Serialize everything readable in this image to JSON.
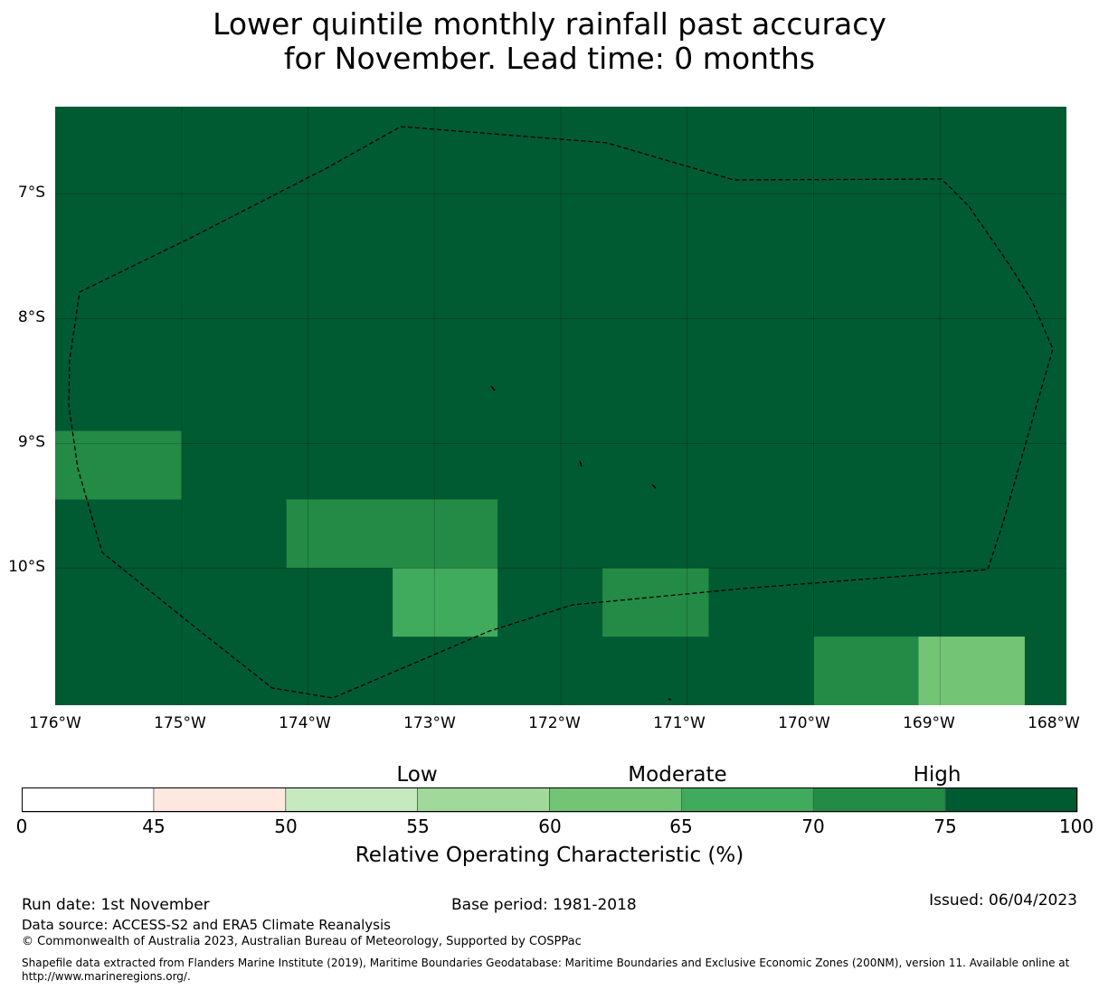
{
  "title": {
    "line1": "Lower quintile monthly rainfall past accuracy",
    "line2": "for November. Lead time: 0 months"
  },
  "map": {
    "background_color": "#005a32",
    "y_axis_labels": [
      "7°S",
      "8°S",
      "9°S",
      "10°S"
    ],
    "x_axis_labels": [
      "176°W",
      "175°W",
      "174°W",
      "173°W",
      "172°W",
      "171°W",
      "170°W",
      "169°W",
      "168°W"
    ],
    "longitude_range": [
      -176,
      -168
    ],
    "latitude_range": [
      -6.3,
      -11.1
    ],
    "cells": [
      {
        "lon_min": -176.0,
        "lon_max": -175.0,
        "lat_min": -9.45,
        "lat_max": -8.9,
        "roc_class": "70-75",
        "color": "#238b45"
      },
      {
        "lon_min": -174.17,
        "lon_max": -172.5,
        "lat_min": -10.0,
        "lat_max": -9.45,
        "roc_class": "70-75",
        "color": "#238b45"
      },
      {
        "lon_min": -173.33,
        "lon_max": -172.5,
        "lat_min": -10.55,
        "lat_max": -10.0,
        "roc_class": "65-70",
        "color": "#41ab5d"
      },
      {
        "lon_min": -171.67,
        "lon_max": -170.83,
        "lat_min": -10.55,
        "lat_max": -10.0,
        "roc_class": "70-75",
        "color": "#238b45"
      },
      {
        "lon_min": -170.0,
        "lon_max": -169.17,
        "lat_min": -11.1,
        "lat_max": -10.55,
        "roc_class": "70-75",
        "color": "#238b45"
      },
      {
        "lon_min": -169.17,
        "lon_max": -168.33,
        "lat_min": -11.1,
        "lat_max": -10.55,
        "roc_class": "60-65",
        "color": "#74c476"
      }
    ],
    "eez_boundary_note": "dashed maritime boundary"
  },
  "colorbar": {
    "categories": [
      "Low",
      "Moderate",
      "High"
    ],
    "ticks": [
      "0",
      "45",
      "50",
      "55",
      "60",
      "65",
      "70",
      "75",
      "100"
    ],
    "colors": [
      "#ffffff",
      "#fee8df",
      "#c7e9c0",
      "#a1d99b",
      "#74c476",
      "#41ab5d",
      "#238b45",
      "#005a32"
    ],
    "title": "Relative Operating Characteristic (%)"
  },
  "footer": {
    "run_date": "Run date: 1st November",
    "base_period": "Base period: 1981-2018",
    "issued": "Issued: 06/04/2023",
    "data_source": "Data source: ACCESS-S2 and ERA5 Climate Reanalysis",
    "copyright": "© Commonwealth of Australia 2023, Australian Bureau of Meteorology, Supported by COSPPac",
    "shapefile_line1": "Shapefile data extracted from Flanders Marine Institute (2019), Maritime Boundaries Geodatabase: Maritime Boundaries and Exclusive Economic Zones (200NM), version 11. Available online at",
    "shapefile_line2": "http://www.marineregions.org/."
  }
}
